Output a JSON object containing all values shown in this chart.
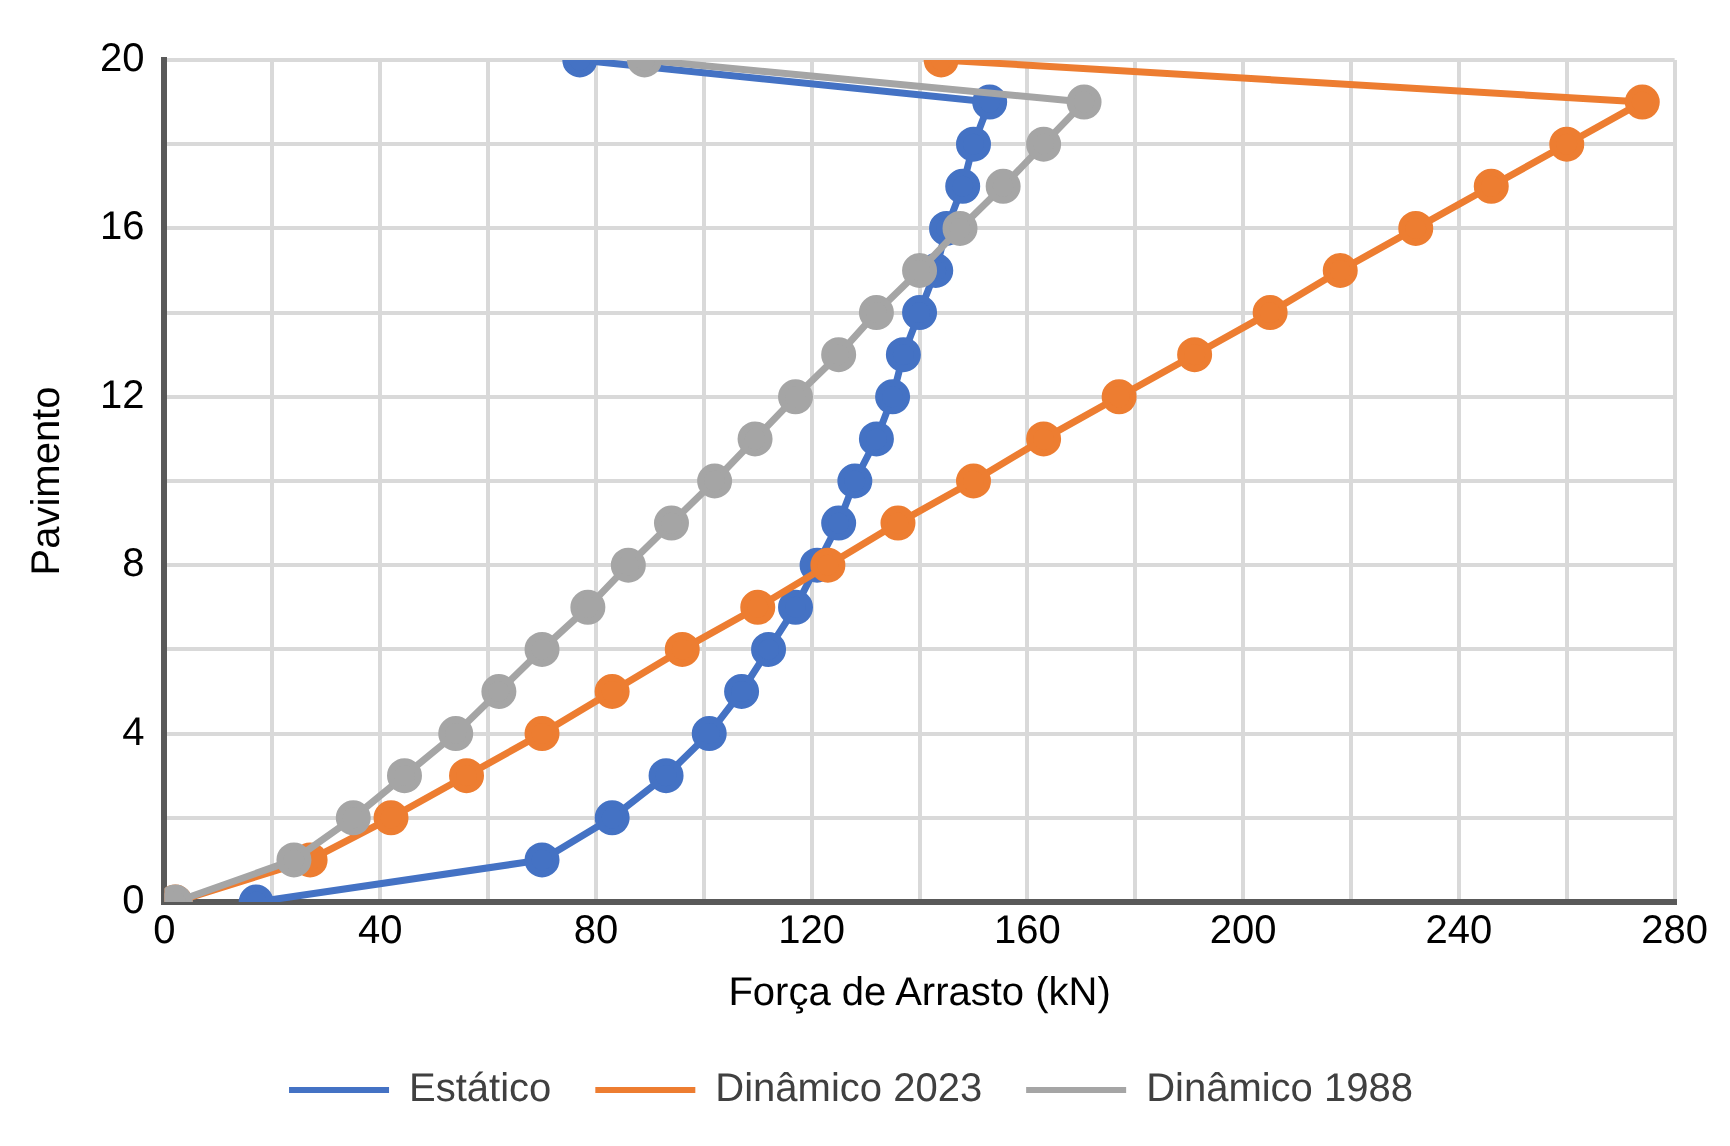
{
  "chart_data": {
    "type": "line",
    "xlabel": "Força de Arrasto (kN)",
    "ylabel": "Pavimento",
    "xlim": [
      0,
      280
    ],
    "xticks": [
      0,
      {
        "value": 20,
        "label": null
      },
      40,
      {
        "value": 60,
        "label": null
      },
      80,
      {
        "value": 100,
        "label": null
      },
      120,
      {
        "value": 140,
        "label": null
      },
      160,
      {
        "value": 180,
        "label": null
      },
      200,
      {
        "value": 220,
        "label": null
      },
      240,
      {
        "value": 260,
        "label": null
      },
      280
    ],
    "ylim": [
      0,
      20
    ],
    "yticks": [
      0,
      {
        "value": 2,
        "label": null
      },
      4,
      {
        "value": 6,
        "label": null
      },
      8,
      {
        "value": 10,
        "label": null
      },
      12,
      {
        "value": 14,
        "label": null
      },
      16,
      {
        "value": 18,
        "label": null
      },
      20
    ],
    "grid": true,
    "legend": "bottom",
    "marker": "circle",
    "line_style": "solid",
    "series": [
      {
        "name": "Estático",
        "color": "#4472c4",
        "x": [
          17,
          70,
          83,
          93,
          101,
          107,
          112,
          117,
          121,
          125,
          128,
          132,
          135,
          137,
          140,
          143,
          145,
          148,
          150,
          153,
          77
        ],
        "values": [
          0,
          1,
          2,
          3,
          4,
          5,
          6,
          7,
          8,
          9,
          10,
          11,
          12,
          13,
          14,
          15,
          16,
          17,
          18,
          19,
          20
        ]
      },
      {
        "name": "Dinâmico 2023",
        "color": "#ed7d31",
        "x": [
          2,
          27,
          42,
          56,
          70,
          83,
          96,
          110,
          123,
          136,
          150,
          163,
          177,
          191,
          205,
          218,
          232,
          246,
          260,
          274,
          144
        ],
        "values": [
          0,
          1,
          2,
          3,
          4,
          5,
          6,
          7,
          8,
          9,
          10,
          11,
          12,
          13,
          14,
          15,
          16,
          17,
          18,
          19,
          20
        ]
      },
      {
        "name": "Dinâmico 1988",
        "color": "#a5a5a5",
        "x": [
          2,
          24,
          35,
          44.5,
          54,
          62,
          70,
          78.5,
          86,
          94,
          102,
          109.5,
          117,
          125,
          132,
          140,
          147.5,
          155.5,
          163,
          170.5,
          89
        ],
        "values": [
          0,
          1,
          2,
          3,
          4,
          5,
          6,
          7,
          8,
          9,
          10,
          11,
          12,
          13,
          14,
          15,
          16,
          17,
          18,
          19,
          20
        ]
      }
    ]
  }
}
